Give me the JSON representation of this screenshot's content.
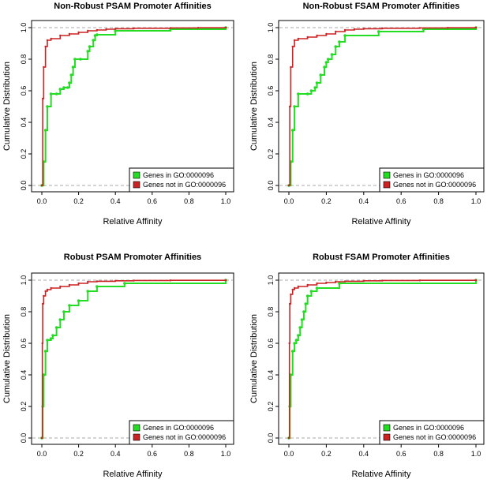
{
  "chart_data": [
    {
      "type": "line",
      "title": "Non-Robust PSAM Promoter Affinities",
      "xlabel": "Relative Affinity",
      "ylabel": "Cumulative Distribution",
      "xlim": [
        0,
        1
      ],
      "ylim": [
        0,
        1
      ],
      "x_ticks": [
        "0.0",
        "0.2",
        "0.4",
        "0.6",
        "0.8",
        "1.0"
      ],
      "y_ticks": [
        "0.0",
        "0.2",
        "0.4",
        "0.6",
        "0.8",
        "1.0"
      ],
      "reference_lines_y": [
        0,
        1
      ],
      "legend": {
        "position": "bottom-right",
        "entries": [
          "Genes in  GO:0000096",
          "Genes not in  GO:0000096"
        ]
      },
      "series": [
        {
          "name": "Genes in  GO:0000096",
          "color": "#22dd22",
          "x": [
            0.0,
            0.01,
            0.02,
            0.03,
            0.05,
            0.08,
            0.1,
            0.12,
            0.14,
            0.15,
            0.16,
            0.17,
            0.18,
            0.21,
            0.25,
            0.26,
            0.28,
            0.29,
            0.3,
            0.4,
            0.7,
            1.0
          ],
          "y": [
            0.0,
            0.15,
            0.35,
            0.5,
            0.58,
            0.58,
            0.61,
            0.62,
            0.62,
            0.65,
            0.7,
            0.75,
            0.8,
            0.8,
            0.85,
            0.88,
            0.92,
            0.95,
            0.955,
            0.98,
            0.99,
            1.0
          ]
        },
        {
          "name": "Genes not in  GO:0000096",
          "color": "#cc2222",
          "x": [
            0.0,
            0.005,
            0.01,
            0.02,
            0.03,
            0.05,
            0.1,
            0.15,
            0.2,
            0.25,
            0.3,
            0.35,
            0.4,
            0.5,
            0.7,
            0.85,
            1.0
          ],
          "y": [
            0.0,
            0.55,
            0.75,
            0.88,
            0.92,
            0.93,
            0.95,
            0.96,
            0.97,
            0.98,
            0.985,
            0.99,
            0.993,
            0.996,
            0.998,
            0.999,
            1.0
          ]
        }
      ]
    },
    {
      "type": "line",
      "title": "Non-Robust FSAM Promoter Affinities",
      "xlabel": "Relative Affinity",
      "ylabel": "Cumulative Distribution",
      "xlim": [
        0,
        1
      ],
      "ylim": [
        0,
        1
      ],
      "x_ticks": [
        "0.0",
        "0.2",
        "0.4",
        "0.6",
        "0.8",
        "1.0"
      ],
      "y_ticks": [
        "0.0",
        "0.2",
        "0.4",
        "0.6",
        "0.8",
        "1.0"
      ],
      "reference_lines_y": [
        0,
        1
      ],
      "legend": {
        "position": "bottom-right",
        "entries": [
          "Genes in  GO:0000096",
          "Genes not in  GO:0000096"
        ]
      },
      "series": [
        {
          "name": "Genes in  GO:0000096",
          "color": "#22dd22",
          "x": [
            0.0,
            0.01,
            0.02,
            0.03,
            0.05,
            0.1,
            0.12,
            0.14,
            0.15,
            0.17,
            0.19,
            0.2,
            0.21,
            0.23,
            0.25,
            0.27,
            0.3,
            0.48,
            0.72,
            1.0
          ],
          "y": [
            0.0,
            0.15,
            0.35,
            0.5,
            0.58,
            0.58,
            0.6,
            0.62,
            0.65,
            0.7,
            0.75,
            0.78,
            0.8,
            0.83,
            0.88,
            0.91,
            0.95,
            0.975,
            0.99,
            1.0
          ]
        },
        {
          "name": "Genes not in  GO:0000096",
          "color": "#cc2222",
          "x": [
            0.0,
            0.005,
            0.01,
            0.02,
            0.03,
            0.05,
            0.1,
            0.15,
            0.2,
            0.25,
            0.3,
            0.35,
            0.4,
            0.5,
            0.7,
            0.85,
            1.0
          ],
          "y": [
            0.0,
            0.5,
            0.75,
            0.88,
            0.92,
            0.93,
            0.94,
            0.95,
            0.96,
            0.975,
            0.985,
            0.99,
            0.993,
            0.996,
            0.998,
            0.999,
            1.0
          ]
        }
      ]
    },
    {
      "type": "line",
      "title": "Robust PSAM Promoter Affinities",
      "xlabel": "Relative Affinity",
      "ylabel": "Cumulative Distribution",
      "xlim": [
        0,
        1
      ],
      "ylim": [
        0,
        1
      ],
      "x_ticks": [
        "0.0",
        "0.2",
        "0.4",
        "0.6",
        "0.8",
        "1.0"
      ],
      "y_ticks": [
        "0.0",
        "0.2",
        "0.4",
        "0.6",
        "0.8",
        "1.0"
      ],
      "reference_lines_y": [
        0,
        1
      ],
      "legend": {
        "position": "bottom-right",
        "entries": [
          "Genes in  GO:0000096",
          "Genes not in  GO:0000096"
        ]
      },
      "series": [
        {
          "name": "Genes in  GO:0000096",
          "color": "#22dd22",
          "x": [
            0.0,
            0.005,
            0.01,
            0.02,
            0.03,
            0.05,
            0.06,
            0.08,
            0.1,
            0.12,
            0.15,
            0.2,
            0.25,
            0.3,
            0.45,
            1.0
          ],
          "y": [
            0.0,
            0.2,
            0.4,
            0.55,
            0.62,
            0.63,
            0.65,
            0.7,
            0.75,
            0.8,
            0.84,
            0.87,
            0.93,
            0.96,
            0.98,
            1.0
          ]
        },
        {
          "name": "Genes not in  GO:0000096",
          "color": "#cc2222",
          "x": [
            0.0,
            0.003,
            0.005,
            0.01,
            0.02,
            0.03,
            0.05,
            0.1,
            0.15,
            0.2,
            0.25,
            0.3,
            0.4,
            0.5,
            0.7,
            1.0
          ],
          "y": [
            0.0,
            0.6,
            0.85,
            0.9,
            0.93,
            0.94,
            0.95,
            0.96,
            0.97,
            0.98,
            0.99,
            0.993,
            0.996,
            0.998,
            0.999,
            1.0
          ]
        }
      ]
    },
    {
      "type": "line",
      "title": "Robust FSAM Promoter Affinities",
      "xlabel": "Relative Affinity",
      "ylabel": "Cumulative Distribution",
      "xlim": [
        0,
        1
      ],
      "ylim": [
        0,
        1
      ],
      "x_ticks": [
        "0.0",
        "0.2",
        "0.4",
        "0.6",
        "0.8",
        "1.0"
      ],
      "y_ticks": [
        "0.0",
        "0.2",
        "0.4",
        "0.6",
        "0.8",
        "1.0"
      ],
      "reference_lines_y": [
        0,
        1
      ],
      "legend": {
        "position": "bottom-right",
        "entries": [
          "Genes in  GO:0000096",
          "Genes not in  GO:0000096"
        ]
      },
      "series": [
        {
          "name": "Genes in  GO:0000096",
          "color": "#22dd22",
          "x": [
            0.0,
            0.005,
            0.01,
            0.02,
            0.03,
            0.04,
            0.05,
            0.06,
            0.07,
            0.08,
            0.09,
            0.1,
            0.12,
            0.15,
            0.27,
            1.0
          ],
          "y": [
            0.0,
            0.2,
            0.4,
            0.55,
            0.6,
            0.62,
            0.65,
            0.7,
            0.75,
            0.8,
            0.85,
            0.9,
            0.93,
            0.95,
            0.98,
            1.0
          ]
        },
        {
          "name": "Genes not in  GO:0000096",
          "color": "#cc2222",
          "x": [
            0.0,
            0.003,
            0.005,
            0.01,
            0.02,
            0.03,
            0.05,
            0.1,
            0.15,
            0.2,
            0.25,
            0.3,
            0.4,
            0.5,
            0.7,
            1.0
          ],
          "y": [
            0.0,
            0.6,
            0.85,
            0.91,
            0.94,
            0.95,
            0.96,
            0.97,
            0.98,
            0.985,
            0.99,
            0.993,
            0.996,
            0.998,
            0.999,
            1.0
          ]
        }
      ]
    }
  ]
}
